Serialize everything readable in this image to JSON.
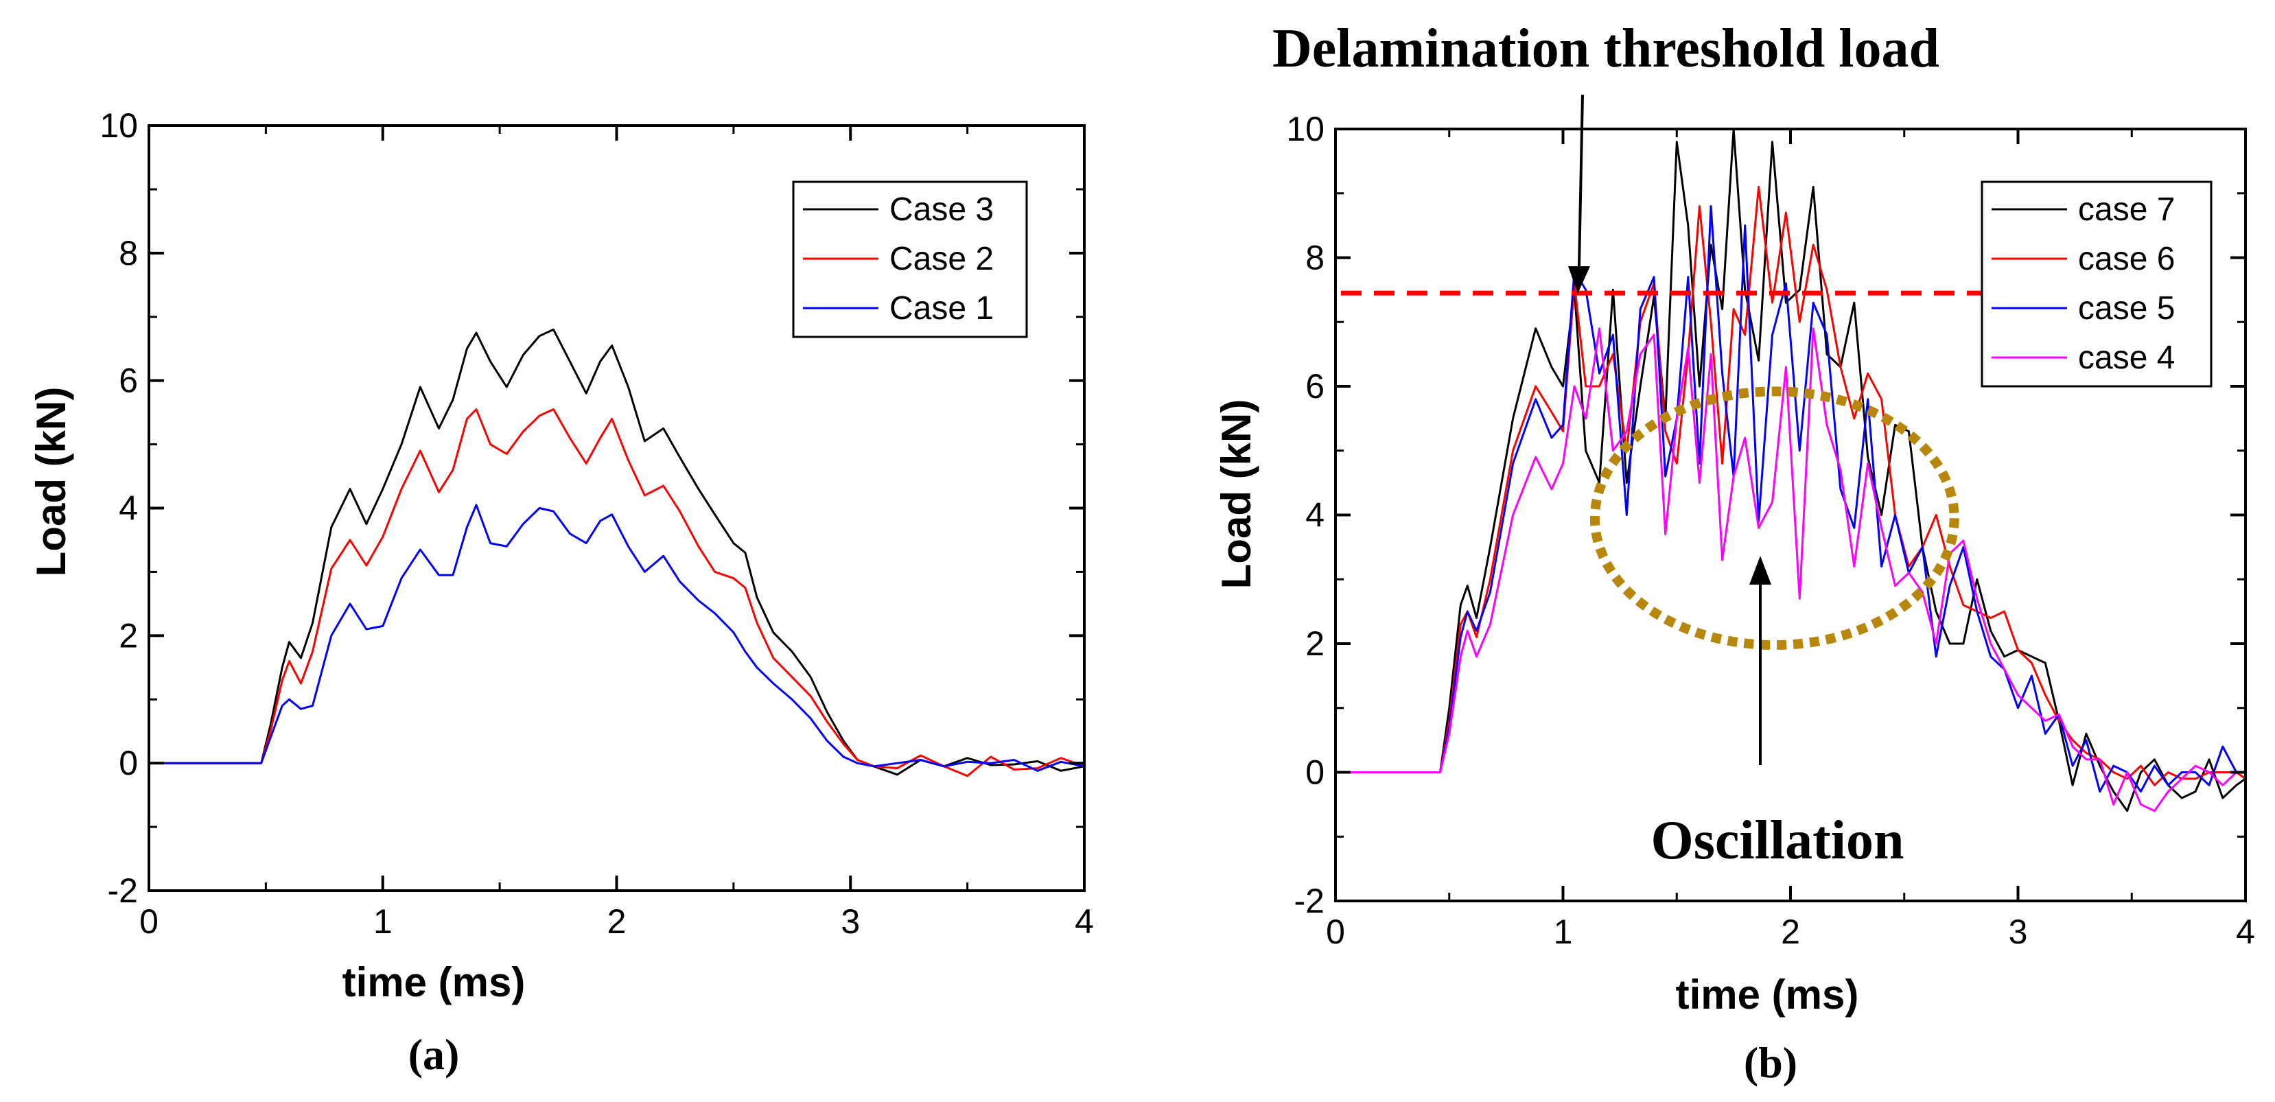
{
  "chart_data": [
    {
      "type": "line",
      "panel_label": "(a)",
      "xlabel": "time (ms)",
      "ylabel": "Load (kN)",
      "xlim": [
        0,
        4
      ],
      "ylim": [
        -2,
        10
      ],
      "xticks": [
        "0",
        "1",
        "2",
        "3",
        "4"
      ],
      "yticks": [
        "-2",
        "0",
        "2",
        "4",
        "6",
        "8",
        "10"
      ],
      "legend_position": "top-right",
      "series": [
        {
          "name": "Case 3",
          "color": "#000000",
          "x": [
            0,
            0.3,
            0.48,
            0.52,
            0.57,
            0.6,
            0.65,
            0.7,
            0.78,
            0.86,
            0.93,
            1.0,
            1.08,
            1.16,
            1.24,
            1.3,
            1.36,
            1.4,
            1.46,
            1.53,
            1.6,
            1.67,
            1.73,
            1.8,
            1.87,
            1.93,
            1.98,
            2.05,
            2.12,
            2.2,
            2.27,
            2.35,
            2.42,
            2.5,
            2.55,
            2.6,
            2.67,
            2.75,
            2.83,
            2.9,
            2.97,
            3.03,
            3.1,
            3.2,
            3.3,
            3.4,
            3.5,
            3.6,
            3.7,
            3.8,
            3.9,
            4.0
          ],
          "y": [
            0,
            0,
            0,
            0.6,
            1.5,
            1.9,
            1.65,
            2.2,
            3.7,
            4.3,
            3.75,
            4.3,
            5.0,
            5.9,
            5.25,
            5.7,
            6.5,
            6.75,
            6.3,
            5.9,
            6.4,
            6.7,
            6.8,
            6.3,
            5.8,
            6.3,
            6.55,
            5.9,
            5.05,
            5.25,
            4.8,
            4.3,
            3.9,
            3.45,
            3.3,
            2.6,
            2.05,
            1.75,
            1.35,
            0.8,
            0.35,
            0.05,
            -0.05,
            -0.18,
            0.05,
            -0.05,
            0.08,
            -0.03,
            -0.02,
            0.03,
            -0.12,
            -0.05
          ]
        },
        {
          "name": "Case 2",
          "color": "#ff0000",
          "x": [
            0,
            0.3,
            0.48,
            0.52,
            0.57,
            0.6,
            0.65,
            0.7,
            0.78,
            0.86,
            0.93,
            1.0,
            1.08,
            1.16,
            1.24,
            1.3,
            1.36,
            1.4,
            1.46,
            1.53,
            1.6,
            1.67,
            1.73,
            1.8,
            1.87,
            1.93,
            1.98,
            2.05,
            2.12,
            2.2,
            2.27,
            2.35,
            2.42,
            2.5,
            2.55,
            2.6,
            2.67,
            2.75,
            2.83,
            2.9,
            2.97,
            3.03,
            3.1,
            3.2,
            3.3,
            3.4,
            3.5,
            3.6,
            3.7,
            3.8,
            3.9,
            4.0
          ],
          "y": [
            0,
            0,
            0,
            0.5,
            1.3,
            1.6,
            1.25,
            1.75,
            3.05,
            3.5,
            3.1,
            3.55,
            4.3,
            4.9,
            4.25,
            4.6,
            5.4,
            5.55,
            5.0,
            4.85,
            5.2,
            5.45,
            5.55,
            5.1,
            4.7,
            5.1,
            5.4,
            4.75,
            4.2,
            4.35,
            3.95,
            3.4,
            3.0,
            2.9,
            2.75,
            2.2,
            1.65,
            1.35,
            1.05,
            0.65,
            0.3,
            0.05,
            -0.05,
            -0.08,
            0.12,
            -0.05,
            -0.2,
            0.1,
            -0.1,
            -0.08,
            0.08,
            -0.05
          ]
        },
        {
          "name": "Case 1",
          "color": "#0000ff",
          "x": [
            0,
            0.3,
            0.48,
            0.52,
            0.57,
            0.6,
            0.65,
            0.7,
            0.78,
            0.86,
            0.93,
            1.0,
            1.08,
            1.16,
            1.24,
            1.3,
            1.36,
            1.4,
            1.46,
            1.53,
            1.6,
            1.67,
            1.73,
            1.8,
            1.87,
            1.93,
            1.98,
            2.05,
            2.12,
            2.2,
            2.27,
            2.35,
            2.42,
            2.5,
            2.55,
            2.6,
            2.67,
            2.75,
            2.83,
            2.9,
            2.97,
            3.03,
            3.1,
            3.2,
            3.3,
            3.4,
            3.5,
            3.6,
            3.7,
            3.8,
            3.9,
            4.0
          ],
          "y": [
            0,
            0,
            0,
            0.4,
            0.9,
            1.0,
            0.85,
            0.9,
            2.0,
            2.5,
            2.1,
            2.15,
            2.9,
            3.35,
            2.95,
            2.95,
            3.7,
            4.05,
            3.45,
            3.4,
            3.75,
            4.0,
            3.95,
            3.6,
            3.45,
            3.8,
            3.9,
            3.4,
            3.0,
            3.25,
            2.85,
            2.55,
            2.35,
            2.05,
            1.75,
            1.5,
            1.25,
            1.0,
            0.7,
            0.35,
            0.1,
            0.0,
            -0.05,
            0.0,
            0.05,
            -0.05,
            0.02,
            0.0,
            0.05,
            -0.12,
            0.02,
            -0.05
          ]
        }
      ]
    },
    {
      "type": "line",
      "panel_label": "(b)",
      "xlabel": "time (ms)",
      "ylabel": "Load (kN)",
      "xlim": [
        0,
        4
      ],
      "ylim": [
        -2,
        10
      ],
      "xticks": [
        "0",
        "1",
        "2",
        "3",
        "4"
      ],
      "yticks": [
        "-2",
        "0",
        "2",
        "4",
        "6",
        "8",
        "10"
      ],
      "legend_position": "top-right",
      "threshold_y": 7.45,
      "annotations": {
        "threshold": "Delamination threshold load",
        "oscillation": "Oscillation"
      },
      "colors": {
        "threshold_line": "#ff0000",
        "circle": "#b8860b"
      },
      "series": [
        {
          "name": "case 7",
          "color": "#000000",
          "x": [
            0,
            0.3,
            0.46,
            0.5,
            0.55,
            0.58,
            0.62,
            0.68,
            0.78,
            0.88,
            0.95,
            1.0,
            1.05,
            1.1,
            1.16,
            1.22,
            1.28,
            1.34,
            1.4,
            1.45,
            1.5,
            1.55,
            1.6,
            1.65,
            1.7,
            1.75,
            1.8,
            1.86,
            1.92,
            1.98,
            2.04,
            2.1,
            2.16,
            2.22,
            2.28,
            2.34,
            2.4,
            2.46,
            2.52,
            2.58,
            2.64,
            2.7,
            2.76,
            2.82,
            2.88,
            2.94,
            3.0,
            3.06,
            3.12,
            3.18,
            3.24,
            3.3,
            3.36,
            3.42,
            3.48,
            3.54,
            3.6,
            3.66,
            3.72,
            3.78,
            3.84,
            3.9,
            3.96,
            4.0
          ],
          "y": [
            0,
            0,
            0,
            1.0,
            2.6,
            2.9,
            2.4,
            3.5,
            5.5,
            6.9,
            6.3,
            6.0,
            7.5,
            5.0,
            4.5,
            7.5,
            4.5,
            6.0,
            7.4,
            5.5,
            9.8,
            8.5,
            6.0,
            8.2,
            7.2,
            10.0,
            7.5,
            6.4,
            9.8,
            7.3,
            7.5,
            9.1,
            6.5,
            6.3,
            7.3,
            4.9,
            4.0,
            5.4,
            5.3,
            3.5,
            2.5,
            2.0,
            2.0,
            3.0,
            2.2,
            1.8,
            1.9,
            1.8,
            1.7,
            0.8,
            -0.2,
            0.6,
            0.1,
            -0.3,
            -0.6,
            0.0,
            0.2,
            -0.2,
            -0.4,
            -0.3,
            0.2,
            -0.4,
            -0.2,
            -0.1
          ]
        },
        {
          "name": "case 6",
          "color": "#ff0000",
          "x": [
            0,
            0.3,
            0.46,
            0.5,
            0.55,
            0.58,
            0.62,
            0.68,
            0.78,
            0.88,
            0.95,
            1.0,
            1.05,
            1.1,
            1.16,
            1.22,
            1.28,
            1.34,
            1.4,
            1.45,
            1.5,
            1.55,
            1.6,
            1.65,
            1.7,
            1.75,
            1.8,
            1.86,
            1.92,
            1.98,
            2.04,
            2.1,
            2.16,
            2.22,
            2.28,
            2.34,
            2.4,
            2.46,
            2.52,
            2.58,
            2.64,
            2.7,
            2.76,
            2.82,
            2.88,
            2.94,
            3.0,
            3.06,
            3.12,
            3.18,
            3.24,
            3.3,
            3.36,
            3.42,
            3.48,
            3.54,
            3.6,
            3.66,
            3.72,
            3.78,
            3.84,
            3.9,
            3.96,
            4.0
          ],
          "y": [
            0,
            0,
            0,
            0.8,
            2.3,
            2.5,
            2.1,
            3.0,
            5.0,
            6.0,
            5.6,
            5.3,
            7.6,
            6.0,
            6.0,
            6.5,
            5.0,
            7.0,
            7.6,
            5.3,
            4.8,
            6.5,
            8.8,
            7.0,
            4.8,
            7.2,
            6.8,
            9.1,
            7.3,
            8.7,
            7.0,
            8.2,
            7.5,
            6.3,
            5.5,
            6.2,
            5.8,
            4.0,
            3.2,
            3.5,
            4.0,
            3.2,
            2.6,
            2.5,
            2.4,
            2.5,
            1.9,
            1.7,
            1.2,
            0.8,
            0.5,
            0.3,
            0.2,
            0.0,
            -0.1,
            0.1,
            -0.2,
            0.0,
            -0.1,
            -0.1,
            0.0,
            0.0,
            0.0,
            -0.1
          ]
        },
        {
          "name": "case 5",
          "color": "#0000ff",
          "x": [
            0,
            0.3,
            0.46,
            0.5,
            0.55,
            0.58,
            0.62,
            0.68,
            0.78,
            0.88,
            0.95,
            1.0,
            1.05,
            1.1,
            1.16,
            1.22,
            1.28,
            1.34,
            1.4,
            1.45,
            1.5,
            1.55,
            1.6,
            1.65,
            1.7,
            1.75,
            1.8,
            1.86,
            1.92,
            1.98,
            2.04,
            2.1,
            2.16,
            2.22,
            2.28,
            2.34,
            2.4,
            2.46,
            2.52,
            2.58,
            2.64,
            2.7,
            2.76,
            2.82,
            2.88,
            2.94,
            3.0,
            3.06,
            3.12,
            3.18,
            3.24,
            3.3,
            3.36,
            3.42,
            3.48,
            3.54,
            3.6,
            3.66,
            3.72,
            3.78,
            3.84,
            3.9,
            3.96,
            4.0
          ],
          "y": [
            0,
            0,
            0,
            0.7,
            2.1,
            2.5,
            2.2,
            2.8,
            4.8,
            5.8,
            5.2,
            5.4,
            7.8,
            7.5,
            6.2,
            6.8,
            4.0,
            7.2,
            7.7,
            4.6,
            5.5,
            7.7,
            4.8,
            8.8,
            6.2,
            4.6,
            8.5,
            3.9,
            6.8,
            7.6,
            5.0,
            7.3,
            6.8,
            4.4,
            3.8,
            5.8,
            3.2,
            4.0,
            3.1,
            3.5,
            1.8,
            2.9,
            3.5,
            2.5,
            1.8,
            1.6,
            1.0,
            1.5,
            0.6,
            0.9,
            0.1,
            0.5,
            -0.3,
            0.1,
            0.0,
            -0.3,
            0.1,
            -0.2,
            0.0,
            0.0,
            -0.2,
            0.4,
            0.0,
            0.0
          ]
        },
        {
          "name": "case 4",
          "color": "#ff00ff",
          "x": [
            0,
            0.3,
            0.46,
            0.5,
            0.55,
            0.58,
            0.62,
            0.68,
            0.78,
            0.88,
            0.95,
            1.0,
            1.05,
            1.1,
            1.16,
            1.22,
            1.28,
            1.34,
            1.4,
            1.45,
            1.5,
            1.55,
            1.6,
            1.65,
            1.7,
            1.75,
            1.8,
            1.86,
            1.92,
            1.98,
            2.04,
            2.1,
            2.16,
            2.22,
            2.28,
            2.34,
            2.4,
            2.46,
            2.52,
            2.58,
            2.64,
            2.7,
            2.76,
            2.82,
            2.88,
            2.94,
            3.0,
            3.06,
            3.12,
            3.18,
            3.24,
            3.3,
            3.36,
            3.42,
            3.48,
            3.54,
            3.6,
            3.66,
            3.72,
            3.78,
            3.84,
            3.9,
            3.96,
            4.0
          ],
          "y": [
            0,
            0,
            0,
            0.6,
            1.8,
            2.2,
            1.8,
            2.3,
            4.0,
            4.9,
            4.4,
            4.8,
            6.0,
            5.5,
            6.9,
            5.0,
            5.3,
            6.5,
            6.8,
            3.7,
            5.5,
            6.6,
            4.5,
            6.5,
            3.3,
            4.6,
            5.2,
            3.8,
            4.2,
            6.3,
            2.7,
            6.9,
            5.4,
            4.7,
            3.2,
            4.8,
            3.8,
            2.9,
            3.1,
            2.8,
            2.0,
            3.4,
            3.6,
            2.7,
            2.0,
            1.6,
            1.2,
            1.0,
            0.8,
            0.9,
            0.4,
            0.2,
            0.2,
            -0.5,
            0.0,
            -0.5,
            -0.6,
            -0.3,
            -0.1,
            0.1,
            0.0,
            -0.2,
            0.0,
            0.0
          ]
        }
      ]
    }
  ]
}
